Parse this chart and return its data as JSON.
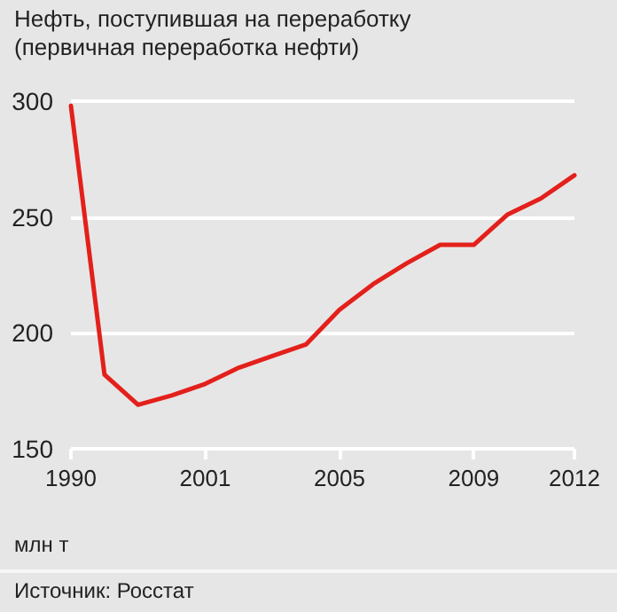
{
  "chart_data": {
    "type": "line",
    "title": "Нефть, поступившая на переработку",
    "subtitle": "(первичная переработка нефти)",
    "ylabel": "млн т",
    "annotations": [
      "Источник: Росстат"
    ],
    "categories": [
      "1990",
      null,
      null,
      null,
      "2001",
      null,
      null,
      null,
      "2005",
      null,
      null,
      null,
      "2009",
      null,
      null,
      "2012"
    ],
    "series": [
      {
        "color": "#e3201b",
        "values": [
          298,
          182,
          169,
          173,
          178,
          185,
          190,
          195,
          210,
          221,
          230,
          238,
          238,
          251,
          258,
          268
        ]
      }
    ],
    "ylim": [
      150,
      300
    ],
    "yticks": [
      150,
      200,
      250,
      300
    ],
    "grid": "y",
    "marker": "none",
    "line_style": "solid"
  }
}
